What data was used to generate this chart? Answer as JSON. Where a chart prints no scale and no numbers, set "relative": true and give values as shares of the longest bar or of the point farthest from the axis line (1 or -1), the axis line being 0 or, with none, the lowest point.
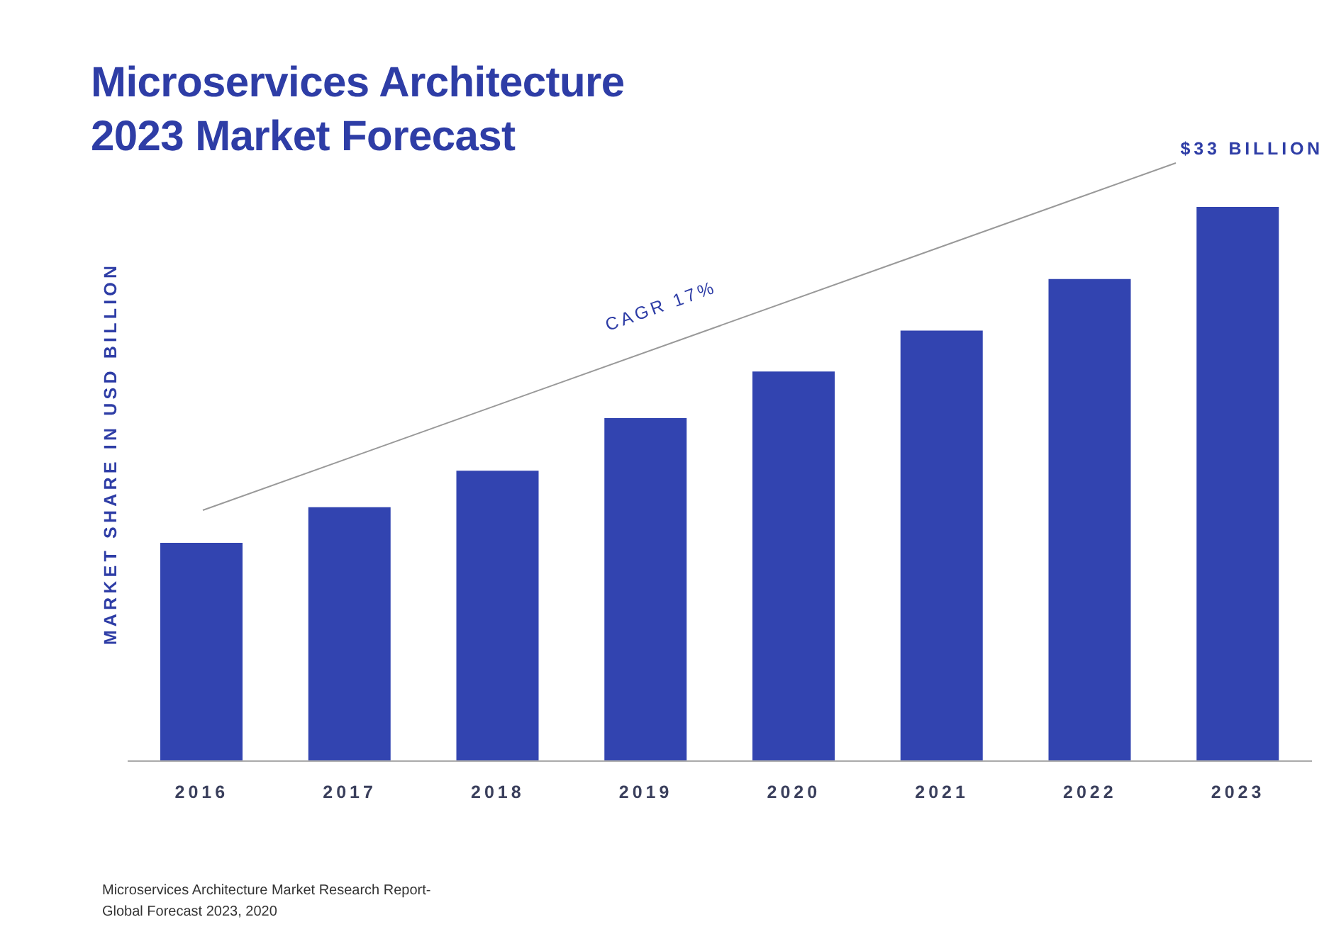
{
  "chart_data": {
    "type": "bar",
    "title": "Microservices Architecture\n2023 Market Forecast",
    "ylabel": "MARKET SHARE IN USD BILLION",
    "categories": [
      "2016",
      "2017",
      "2018",
      "2019",
      "2020",
      "2021",
      "2022",
      "2023"
    ],
    "values": [
      0.394,
      0.458,
      0.524,
      0.619,
      0.703,
      0.777,
      0.87,
      1
    ],
    "color": "#3244b0",
    "relative": true,
    "annotations": [
      "CAGR 17%",
      "$33 BILLION",
      "Microservices Architecture Market Research Report-\nGlobal Forecast 2023, 2020"
    ]
  }
}
